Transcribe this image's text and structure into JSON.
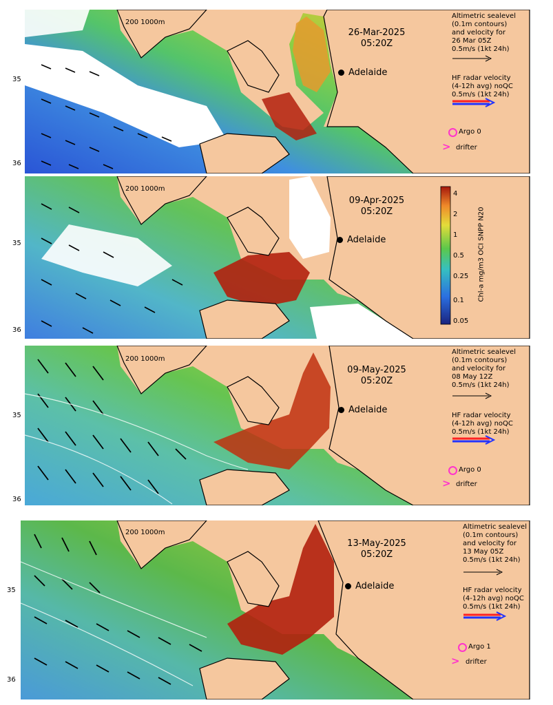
{
  "colors": {
    "land": "#f5c79e",
    "coast": "#000000",
    "city_dot": "#000000",
    "argo": "#ff33cc",
    "drifter": "#ff33cc",
    "hf_red": "#ff2222",
    "hf_blue": "#2233ff",
    "cloud": "#ffffff",
    "chl_low": "#2b5fd9",
    "chl_mid": "#4cc04a",
    "chl_high": "#e5d23a",
    "chl_max": "#b3200d"
  },
  "panels": [
    {
      "date": "26-Mar-2025",
      "time": "05:20Z",
      "scale_label": "200  1000m",
      "lat_labels": [
        "35",
        "36"
      ],
      "city": "Adelaide",
      "altimetric_lines": [
        "Altimetric sealevel",
        "(0.1m contours)",
        "and velocity for",
        "26 Mar 05Z",
        "0.5m/s (1kt 24h)"
      ],
      "hf_lines": [
        "HF radar velocity",
        "(4-12h avg) noQC",
        "0.5m/s (1kt 24h)"
      ],
      "argo_label": "Argo 0",
      "drifter_label": "drifter"
    },
    {
      "date": "09-Apr-2025",
      "time": "05:20Z",
      "scale_label": "200  1000m",
      "lat_labels": [
        "35",
        "36"
      ],
      "city": "Adelaide",
      "colorbar": {
        "label": "Chl-a mg/m3 OCI SNPP N20",
        "ticks": [
          "4",
          "2",
          "1",
          "0.5",
          "0.25",
          "0.1",
          "0.05"
        ]
      }
    },
    {
      "date": "09-May-2025",
      "time": "05:20Z",
      "scale_label": "200  1000m",
      "lat_labels": [
        "35",
        "36"
      ],
      "city": "Adelaide",
      "altimetric_lines": [
        "Altimetric sealevel",
        "(0.1m contours)",
        "and velocity for",
        "08 May 12Z",
        "0.5m/s (1kt 24h)"
      ],
      "hf_lines": [
        "HF radar velocity",
        "(4-12h avg) noQC",
        "0.5m/s (1kt 24h)"
      ],
      "argo_label": "Argo 0",
      "drifter_label": "drifter"
    },
    {
      "date": "13-May-2025",
      "time": "05:20Z",
      "scale_label": "200  1000m",
      "lat_labels": [
        "35",
        "36"
      ],
      "city": "Adelaide",
      "altimetric_lines": [
        "Altimetric sealevel",
        "(0.1m contours)",
        "and velocity for",
        "13 May 05Z",
        "0.5m/s (1kt 24h)"
      ],
      "hf_lines": [
        "HF radar velocity",
        "(4-12h avg) noQC",
        "0.5m/s (1kt 24h)"
      ],
      "argo_label": "Argo 1",
      "drifter_label": "drifter"
    }
  ]
}
